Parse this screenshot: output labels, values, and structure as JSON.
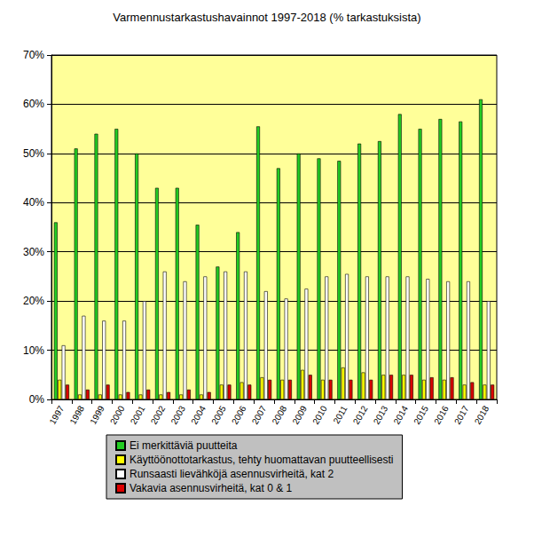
{
  "chart_data": {
    "type": "bar",
    "title": "Varmennustarkastushavainnot 1997-2018 (% tarkastuksista)",
    "categories": [
      "1997",
      "1998",
      "1999",
      "2000",
      "2001",
      "2002",
      "2003",
      "2004",
      "2005",
      "2006",
      "2007",
      "2008",
      "2009",
      "2010",
      "2011",
      "2012",
      "2013",
      "2014",
      "2015",
      "2016",
      "2017",
      "2018"
    ],
    "series": [
      {
        "name": "Ei merkittäviä puutteita",
        "color": "#22cc22",
        "values": [
          36,
          51,
          54,
          55,
          50,
          43,
          43,
          35.5,
          27,
          34,
          55.5,
          47,
          50,
          49,
          48.5,
          52,
          52.5,
          58,
          55,
          57,
          56.5,
          61
        ]
      },
      {
        "name": "Käyttöönottotarkastus, tehty huomattavan puutteellisesti",
        "color": "#ffff00",
        "values": [
          4,
          1,
          1,
          1,
          1,
          1,
          1,
          1,
          3,
          3.5,
          4.5,
          4,
          6,
          4,
          6.5,
          5.5,
          5,
          5,
          4,
          4,
          3,
          3
        ]
      },
      {
        "name": "Runsaasti lievähköjä asennusvirheitä, kat 2",
        "color": "#ffffff",
        "values": [
          11,
          17,
          16,
          16,
          20,
          26,
          24,
          25,
          26,
          26,
          22,
          20.5,
          22.5,
          25,
          25.5,
          25,
          25,
          25,
          24.5,
          24,
          24,
          20
        ]
      },
      {
        "name": "Vakavia asennusvirheitä, kat 0 & 1",
        "color": "#dd0000",
        "values": [
          3,
          2,
          3,
          1.5,
          2,
          1.5,
          2,
          1.5,
          3,
          3,
          4,
          4,
          5,
          4,
          4,
          4,
          5,
          5,
          4.5,
          4.5,
          3.5,
          3
        ]
      }
    ],
    "ylim": [
      0,
      70
    ],
    "yticks": [
      {
        "value": 0,
        "label": "0%"
      },
      {
        "value": 10,
        "label": "10%"
      },
      {
        "value": 20,
        "label": "20%"
      },
      {
        "value": 30,
        "label": "30%"
      },
      {
        "value": 40,
        "label": "40%"
      },
      {
        "value": 50,
        "label": "50%"
      },
      {
        "value": 60,
        "label": "60%"
      },
      {
        "value": 70,
        "label": "70%"
      }
    ],
    "grid": true,
    "legend": "bottom"
  }
}
